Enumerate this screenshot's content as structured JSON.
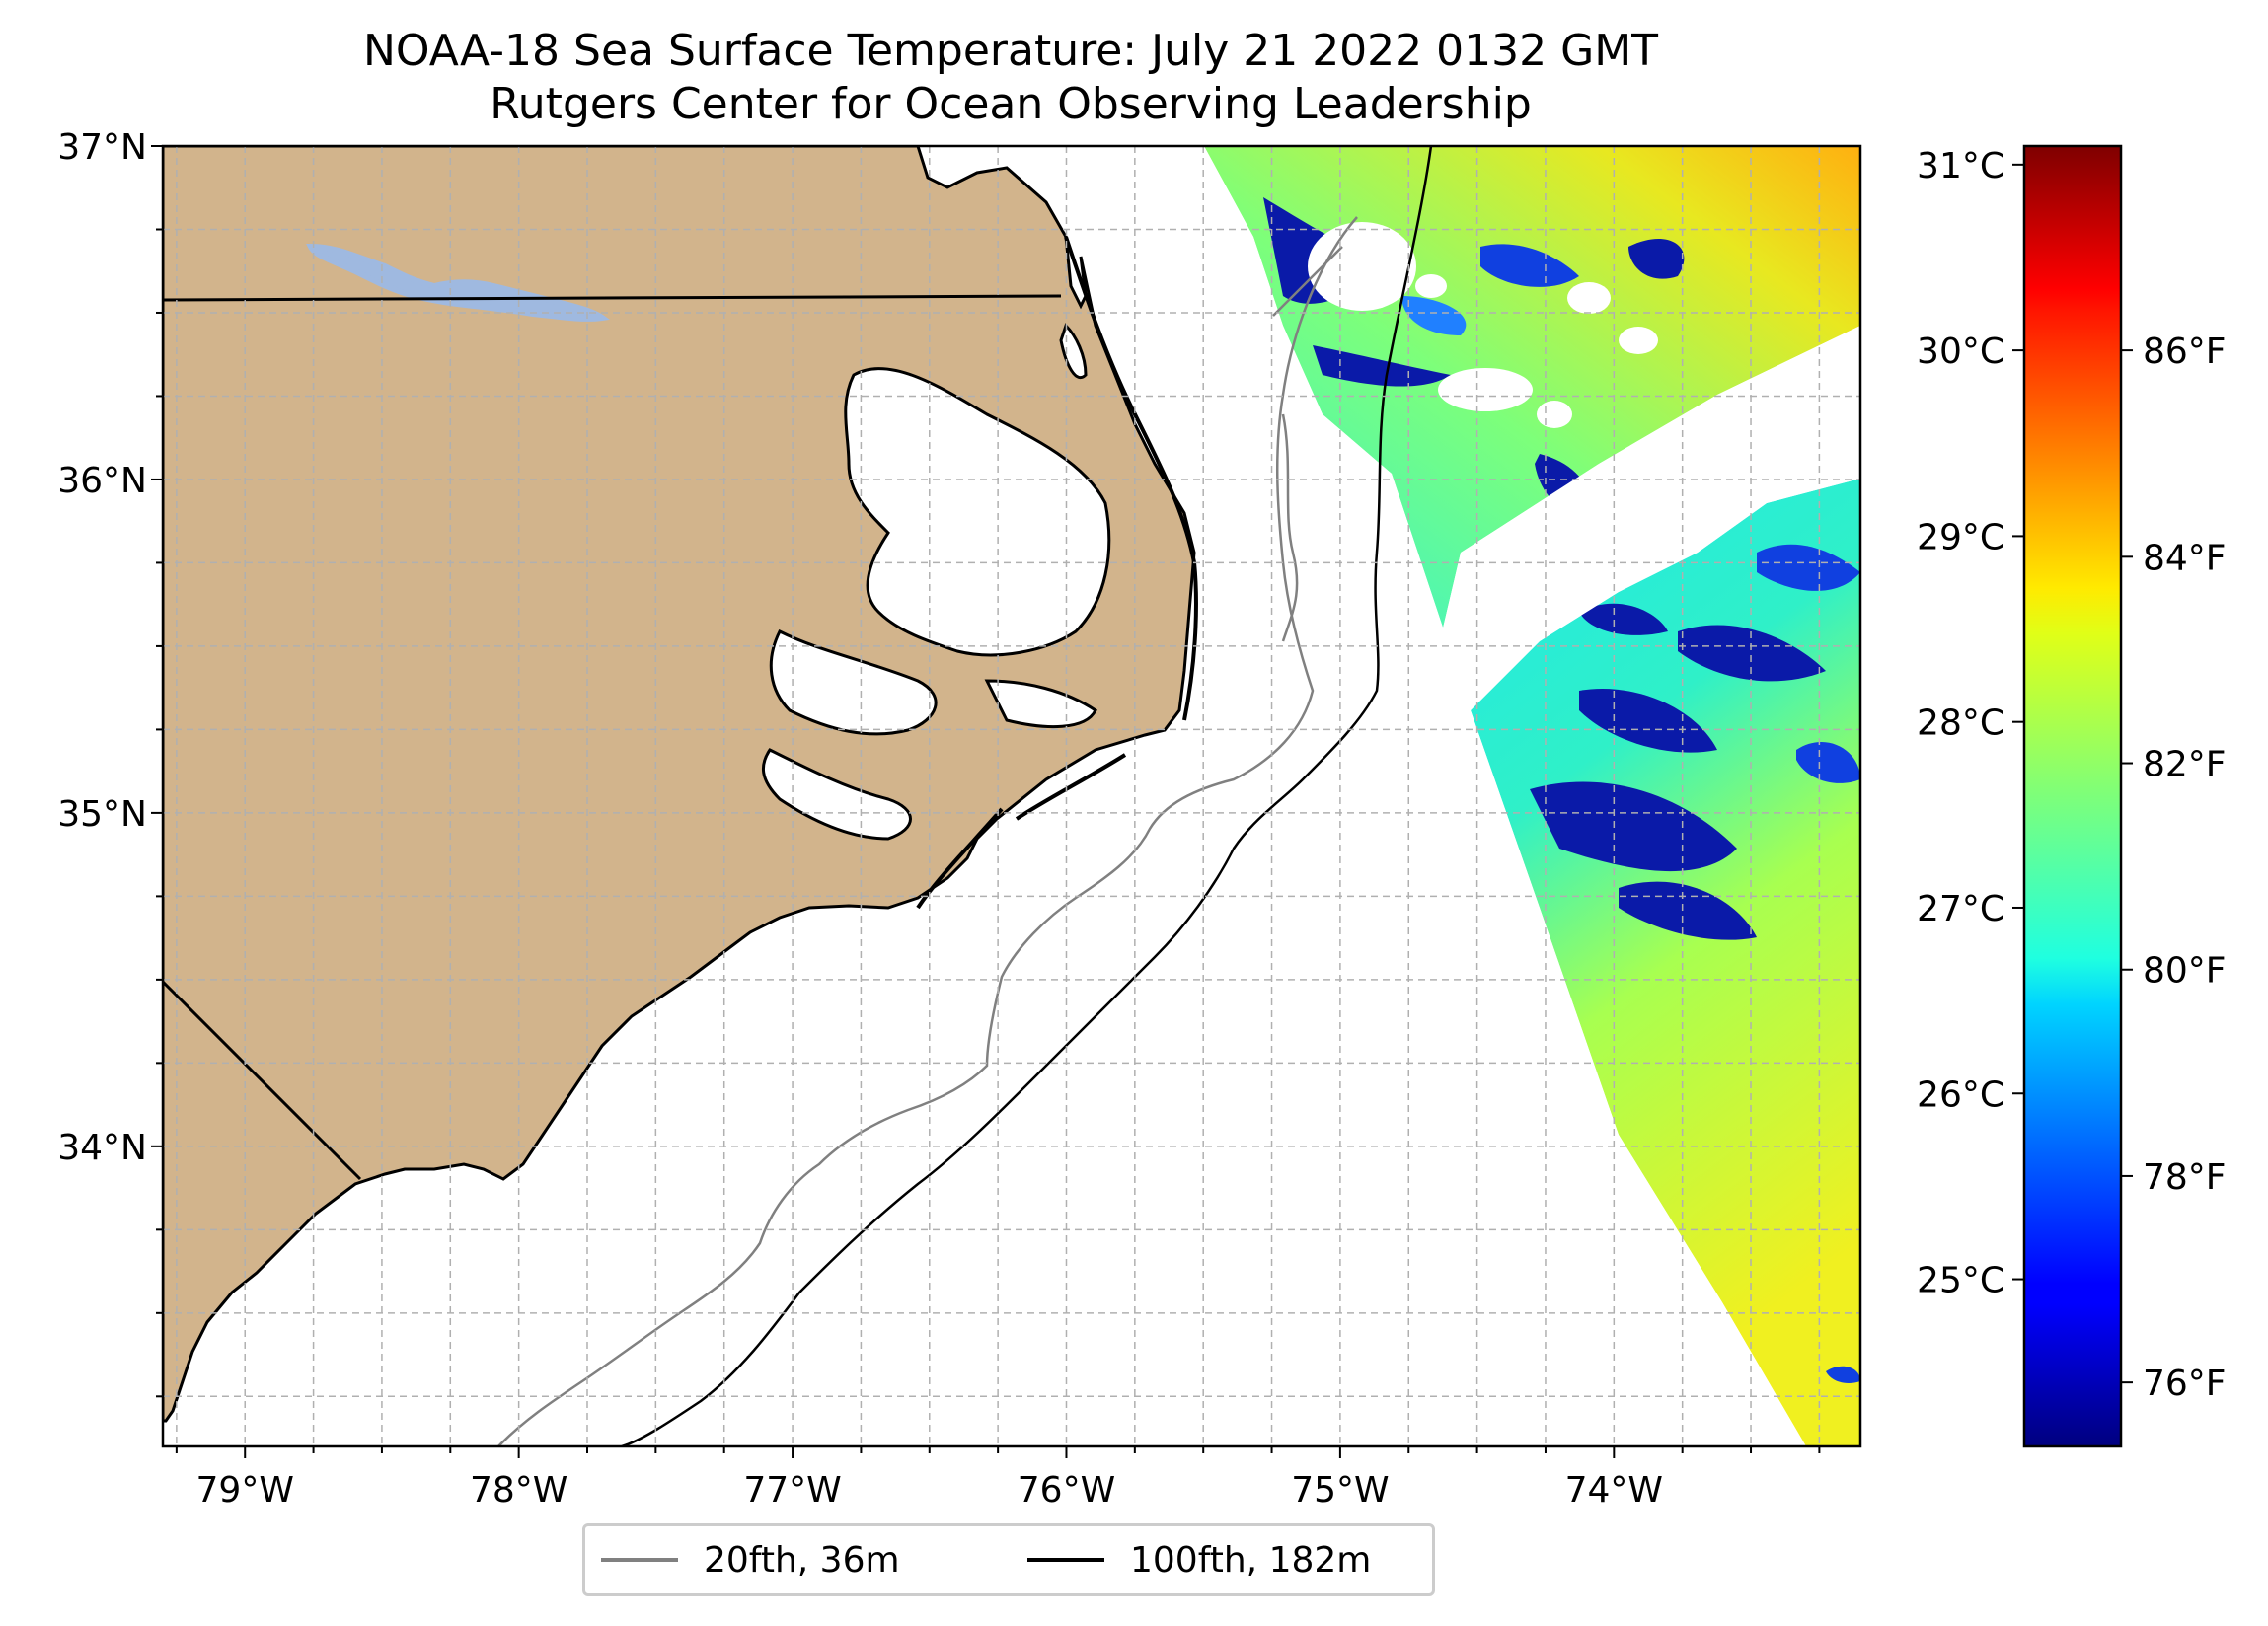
{
  "title": {
    "line1": "NOAA-18 Sea Surface Temperature: July 21 2022 0132 GMT",
    "line2": "Rutgers Center for Ocean Observing Leadership"
  },
  "map": {
    "lon_range": [
      -79.3,
      -73.1
    ],
    "lat_range": [
      33.1,
      37.0
    ],
    "lat_ticks": [
      {
        "value": 37,
        "label": "37°N"
      },
      {
        "value": 36,
        "label": "36°N"
      },
      {
        "value": 35,
        "label": "35°N"
      },
      {
        "value": 34,
        "label": "34°N"
      }
    ],
    "lon_ticks": [
      {
        "value": -79,
        "label": "79°W"
      },
      {
        "value": -78,
        "label": "78°W"
      },
      {
        "value": -77,
        "label": "77°W"
      },
      {
        "value": -76,
        "label": "76°W"
      },
      {
        "value": -75,
        "label": "75°W"
      },
      {
        "value": -74,
        "label": "74°W"
      }
    ],
    "gridlines": "dashed gray every 0.25°",
    "land_color": "#d2b48c",
    "lake_color": "#9fb9e0"
  },
  "legend": {
    "placement": "below map, centered",
    "items": [
      {
        "label": "20fth, 36m",
        "color": "#808080"
      },
      {
        "label": "100fth, 182m",
        "color": "#000000"
      }
    ]
  },
  "colorbar": {
    "colormap": "jet",
    "celsius_range": [
      24.1,
      31.1
    ],
    "celsius_ticks": [
      "31°C",
      "30°C",
      "29°C",
      "28°C",
      "27°C",
      "26°C",
      "25°C"
    ],
    "celsius_values": [
      31,
      30,
      29,
      28,
      27,
      26,
      25
    ],
    "fahrenheit_ticks": [
      "86°F",
      "84°F",
      "82°F",
      "80°F",
      "78°F",
      "76°F"
    ],
    "fahrenheit_values": [
      86,
      84,
      82,
      80,
      78,
      76
    ]
  }
}
